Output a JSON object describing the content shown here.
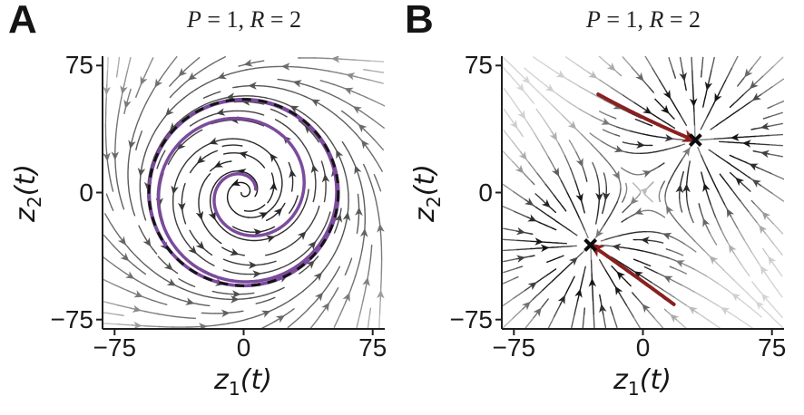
{
  "figure": {
    "background": "#ffffff"
  },
  "chart_data": {
    "type": "streamplot",
    "description": "Two phase portraits of 2D latent dynamics; streamlines shaded by local flow speed",
    "shade_dark": "#121212",
    "shade_light": "#d6d6d6",
    "axis_color": "#1f1f1f",
    "panels": [
      {
        "panel_label": "A",
        "title": "P = 1, R = 2",
        "title_parts": [
          "P",
          " = 1, ",
          "R",
          " = 2"
        ],
        "xlabel": "z1(t)",
        "xlabel_parts": [
          "z",
          "1",
          "(t)"
        ],
        "ylabel": "z2(t)",
        "ylabel_parts": [
          "z",
          "2",
          "(t)"
        ],
        "xlim": [
          -82,
          82
        ],
        "ylim": [
          -80.5,
          80.5
        ],
        "xticks": [
          -75,
          0,
          75
        ],
        "xtick_labels": [
          "−75",
          "0",
          "75"
        ],
        "yticks": [
          -75,
          0,
          75
        ],
        "ytick_labels": [
          "−75",
          "0",
          "75"
        ],
        "field": {
          "kind": "hopf_limit_cycle",
          "omega": 1.0,
          "mu": 0.3,
          "limit_cycle_radius": 55,
          "shading": "slow-dark"
        },
        "overlays": {
          "limit_cycle": {
            "radius": 55,
            "solid_color": "#7b4b9c",
            "dashed_color": "#141414"
          },
          "trajectory": {
            "start": [
              7,
              2
            ],
            "color": "#7b4b9c",
            "steps": 760
          }
        }
      },
      {
        "panel_label": "B",
        "title": "P = 1, R = 2",
        "title_parts": [
          "P",
          " = 1, ",
          "R",
          " = 2"
        ],
        "xlabel": "z1(t)",
        "xlabel_parts": [
          "z",
          "1",
          "(t)"
        ],
        "ylabel": "z2(t)",
        "ylabel_parts": [
          "z",
          "2",
          "(t)"
        ],
        "xlim": [
          -82,
          82
        ],
        "ylim": [
          -80.5,
          80.5
        ],
        "xticks": [
          -75,
          0,
          75
        ],
        "xtick_labels": [
          "−75",
          "0",
          "75"
        ],
        "yticks": [
          -75,
          0,
          75
        ],
        "ytick_labels": [
          "−75",
          "0",
          "75"
        ],
        "field": {
          "kind": "gaussian_wells",
          "centers": [
            [
              30.5,
              31
            ],
            [
              -30.5,
              -31
            ]
          ],
          "sigma": 26,
          "shading": "fast-dark"
        },
        "overlays": {
          "fixed_points": {
            "marker": "x",
            "color": "#0d0d0d",
            "points": [
              [
                30.5,
                31
              ],
              [
                -30.5,
                -31
              ]
            ]
          },
          "trajectories": [
            {
              "start": [
                -26,
                58
              ]
            },
            {
              "start": [
                18,
                -66
              ]
            }
          ],
          "trajectory_color": "#8a1f1f"
        }
      }
    ]
  }
}
